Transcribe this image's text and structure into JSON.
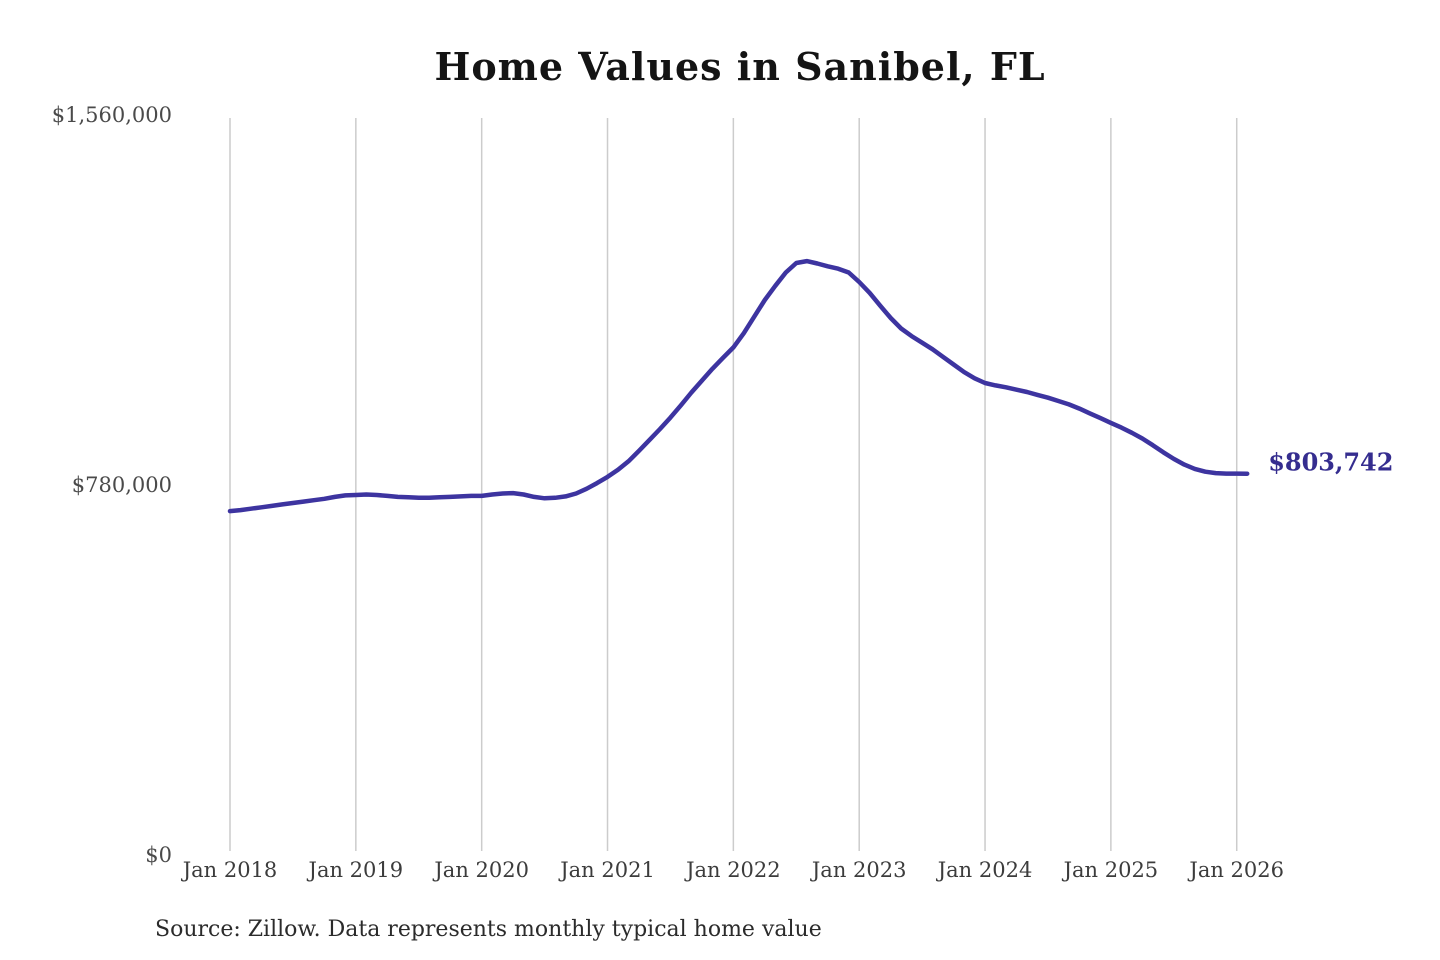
{
  "source_note": "Source: Zillow. Data represents monthly typical home value",
  "colors": {
    "background": "#ffffff",
    "line": "#3d34a0",
    "grid": "#cccccc",
    "title_text": "#141414",
    "y_label_text": "#4a4a4a",
    "x_label_text": "#3c3c3c",
    "annotation_text": "#352d8f"
  },
  "chart_data": {
    "type": "line",
    "title": "Home Values in Sanibel, FL",
    "xlabel": "",
    "ylabel": "",
    "grid": "vertical-only",
    "legend": false,
    "ylim": [
      0,
      1560000
    ],
    "y_ticks": [
      {
        "value": 0,
        "label": "$0"
      },
      {
        "value": 780000,
        "label": "$780,000"
      },
      {
        "value": 1560000,
        "label": "$1,560,000"
      }
    ],
    "x_tick_labels": [
      "Jan 2018",
      "Jan 2019",
      "Jan 2020",
      "Jan 2021",
      "Jan 2022",
      "Jan 2023",
      "Jan 2024",
      "Jan 2025",
      "Jan 2026"
    ],
    "x_range_months": [
      "2018-01",
      "2026-02"
    ],
    "end_label": "$803,742",
    "final_value": 803742,
    "series": [
      {
        "name": "Monthly typical home value",
        "monthly_values": [
          725000,
          727000,
          730000,
          733000,
          736000,
          739000,
          742000,
          745000,
          748000,
          751000,
          755000,
          758000,
          759000,
          760000,
          759000,
          757000,
          755000,
          754000,
          753000,
          753000,
          754000,
          755000,
          756000,
          757000,
          757000,
          760000,
          762000,
          763000,
          760000,
          755000,
          752000,
          753000,
          756000,
          762000,
          772000,
          784000,
          797000,
          812000,
          830000,
          852000,
          875000,
          898000,
          922000,
          948000,
          975000,
          1000000,
          1025000,
          1048000,
          1070000,
          1100000,
          1135000,
          1170000,
          1200000,
          1228000,
          1248000,
          1252000,
          1247000,
          1241000,
          1236000,
          1228000,
          1208000,
          1185000,
          1158000,
          1132000,
          1110000,
          1094000,
          1080000,
          1066000,
          1050000,
          1034000,
          1018000,
          1005000,
          995000,
          990000,
          986000,
          981000,
          976000,
          970000,
          964000,
          957000,
          950000,
          941000,
          931000,
          921000,
          911000,
          901000,
          890000,
          878000,
          864000,
          849000,
          835000,
          823000,
          814000,
          808000,
          805000,
          804000,
          804000,
          803742
        ]
      }
    ]
  }
}
